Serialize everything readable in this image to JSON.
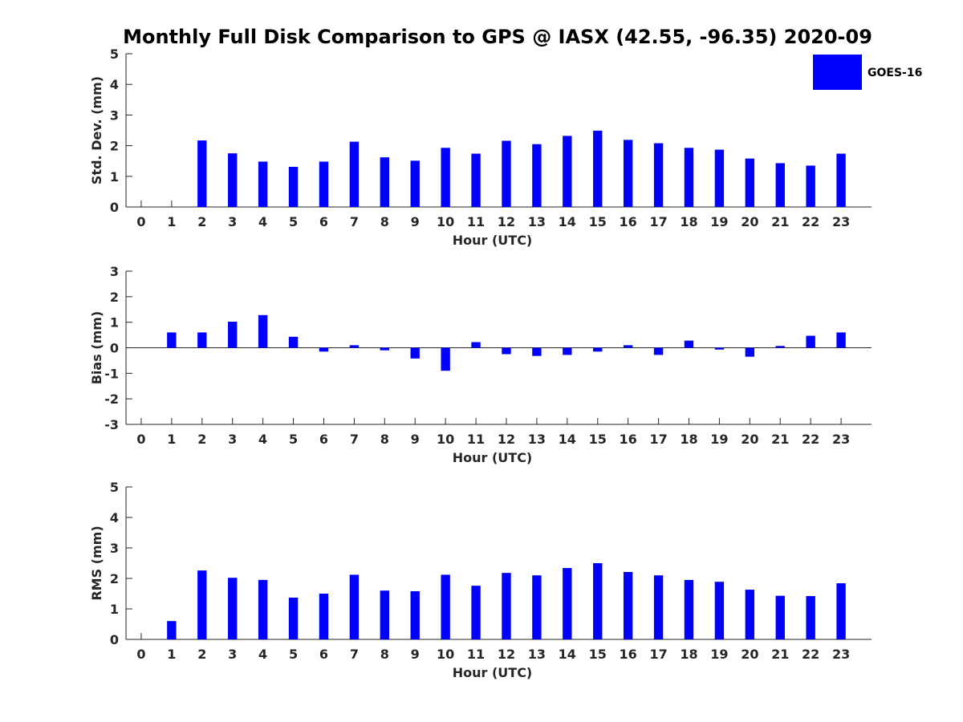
{
  "title": "Monthly Full Disk Comparison to GPS @ IASX (42.55, -96.35) 2020-09",
  "legend": {
    "label": "GOES-16",
    "color": "#0000ff"
  },
  "chart_data": [
    {
      "type": "bar",
      "xlabel": "Hour (UTC)",
      "ylabel": "Std. Dev. (mm)",
      "categories": [
        "0",
        "1",
        "2",
        "3",
        "4",
        "5",
        "6",
        "7",
        "8",
        "9",
        "10",
        "11",
        "12",
        "13",
        "14",
        "15",
        "16",
        "17",
        "18",
        "19",
        "20",
        "21",
        "22",
        "23"
      ],
      "values": [
        null,
        null,
        2.17,
        1.75,
        1.48,
        1.31,
        1.48,
        2.13,
        1.62,
        1.51,
        1.93,
        1.74,
        2.16,
        2.05,
        2.32,
        2.49,
        2.19,
        2.08,
        1.93,
        1.87,
        1.58,
        1.43,
        1.35,
        1.74
      ],
      "ylim": [
        0,
        5
      ],
      "yticks": [
        0,
        1,
        2,
        3,
        4,
        5
      ],
      "series": [
        {
          "name": "GOES-16",
          "color": "#0000ff"
        }
      ],
      "legend": "top-right"
    },
    {
      "type": "bar",
      "xlabel": "Hour (UTC)",
      "ylabel": "Bias (mm)",
      "categories": [
        "0",
        "1",
        "2",
        "3",
        "4",
        "5",
        "6",
        "7",
        "8",
        "9",
        "10",
        "11",
        "12",
        "13",
        "14",
        "15",
        "16",
        "17",
        "18",
        "19",
        "20",
        "21",
        "22",
        "23"
      ],
      "values": [
        null,
        0.6,
        0.6,
        1.02,
        1.28,
        0.43,
        -0.15,
        0.1,
        -0.1,
        -0.42,
        -0.9,
        0.22,
        -0.25,
        -0.32,
        -0.28,
        -0.15,
        0.1,
        -0.28,
        0.28,
        -0.07,
        -0.35,
        0.07,
        0.47,
        0.6
      ],
      "ylim": [
        -3,
        3
      ],
      "yticks": [
        -3,
        -2,
        -1,
        0,
        1,
        2,
        3
      ]
    },
    {
      "type": "bar",
      "xlabel": "Hour (UTC)",
      "ylabel": "RMS (mm)",
      "categories": [
        "0",
        "1",
        "2",
        "3",
        "4",
        "5",
        "6",
        "7",
        "8",
        "9",
        "10",
        "11",
        "12",
        "13",
        "14",
        "15",
        "16",
        "17",
        "18",
        "19",
        "20",
        "21",
        "22",
        "23"
      ],
      "values": [
        null,
        0.6,
        2.26,
        2.02,
        1.95,
        1.37,
        1.5,
        2.12,
        1.6,
        1.58,
        2.12,
        1.76,
        2.18,
        2.1,
        2.34,
        2.5,
        2.21,
        2.1,
        1.95,
        1.89,
        1.63,
        1.43,
        1.42,
        1.84
      ],
      "ylim": [
        0,
        5
      ],
      "yticks": [
        0,
        1,
        2,
        3,
        4,
        5
      ]
    }
  ]
}
